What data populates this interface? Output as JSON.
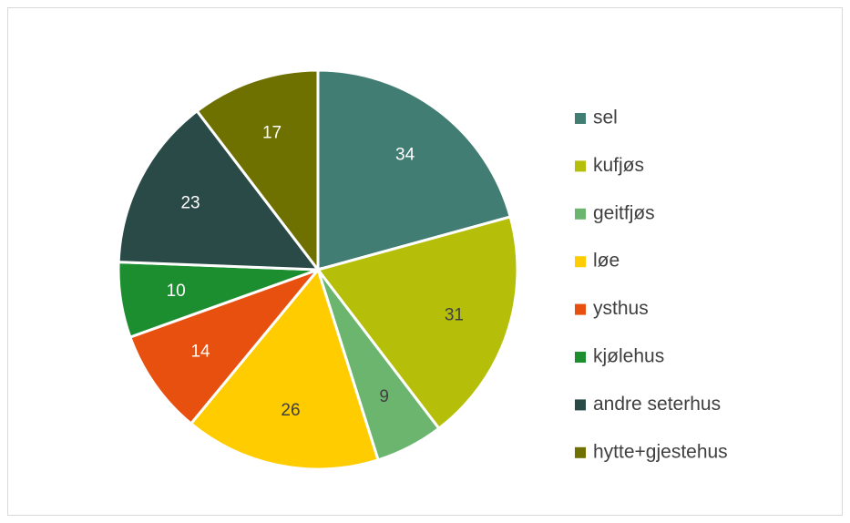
{
  "chart_data": {
    "type": "pie",
    "categories": [
      "sel",
      "kufjøs",
      "geitfjøs",
      "løe",
      "ysthus",
      "kjølehus",
      "andre seterhus",
      "hytte+gjestehus"
    ],
    "values": [
      34,
      31,
      9,
      26,
      14,
      10,
      23,
      17
    ],
    "colors": [
      "#427d73",
      "#b5bf0a",
      "#6bb56e",
      "#ffcc00",
      "#e8500f",
      "#1d8e2f",
      "#2a4a47",
      "#6e7000"
    ],
    "legend": "right"
  }
}
